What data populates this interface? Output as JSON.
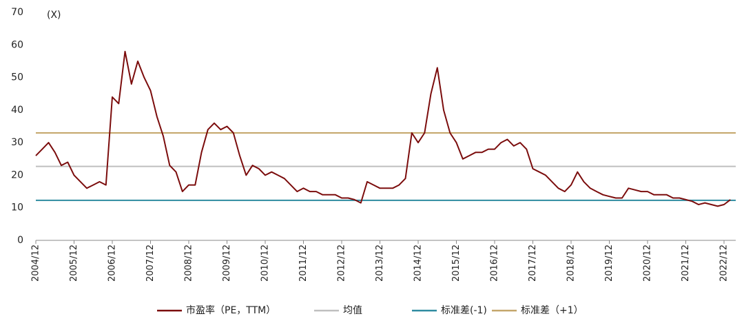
{
  "chart_data": {
    "type": "line",
    "y_unit": "(X)",
    "categories": [
      "2004/12",
      null,
      null,
      null,
      null,
      null,
      "2005/12",
      null,
      null,
      null,
      null,
      null,
      "2006/12",
      null,
      null,
      null,
      null,
      null,
      "2007/12",
      null,
      null,
      null,
      null,
      null,
      "2008/12",
      null,
      null,
      null,
      null,
      null,
      "2009/12",
      null,
      null,
      null,
      null,
      null,
      "2010/12",
      null,
      null,
      null,
      null,
      null,
      "2011/12",
      null,
      null,
      null,
      null,
      null,
      "2012/12",
      null,
      null,
      null,
      null,
      null,
      "2013/12",
      null,
      null,
      null,
      null,
      null,
      "2014/12",
      null,
      null,
      null,
      null,
      null,
      "2015/12",
      null,
      null,
      null,
      null,
      null,
      "2016/12",
      null,
      null,
      null,
      null,
      null,
      "2017/12",
      null,
      null,
      null,
      null,
      null,
      "2018/12",
      null,
      null,
      null,
      null,
      null,
      "2019/12",
      null,
      null,
      null,
      null,
      null,
      "2020/12",
      null,
      null,
      null,
      null,
      null,
      "2021/12",
      null,
      null,
      null,
      null,
      null,
      "2022/12",
      null
    ],
    "series": [
      {
        "name": "市盈率（PE，TTM）",
        "color": "#7b0c0c",
        "values": [
          26,
          28,
          30,
          27,
          23,
          24,
          20,
          18,
          16,
          17,
          18,
          17,
          44,
          42,
          58,
          48,
          55,
          50,
          46,
          38,
          32,
          23,
          21,
          15,
          17,
          17,
          27,
          34,
          36,
          34,
          35,
          33,
          26,
          20,
          23,
          22,
          20,
          21,
          20,
          19,
          17,
          15,
          16,
          15,
          15,
          14,
          14,
          14,
          13,
          13,
          12.5,
          11.5,
          18,
          17,
          16,
          16,
          16,
          17,
          19,
          33,
          30,
          33,
          45,
          53,
          40,
          33,
          30,
          25,
          26,
          27,
          27,
          28,
          28,
          30,
          31,
          29,
          30,
          28,
          22,
          21,
          20,
          18,
          16,
          15,
          17,
          21,
          18,
          16,
          15,
          14,
          13.5,
          13,
          13,
          16,
          15.5,
          15,
          15,
          14,
          14,
          14,
          13,
          13,
          12.5,
          12,
          11,
          11.5,
          11,
          10.5,
          11,
          12.5
        ]
      }
    ],
    "reference_lines": [
      {
        "name": "均值",
        "value": 22.7,
        "color": "#bfbfbf"
      },
      {
        "name": "标准差(-1)",
        "value": 12.3,
        "color": "#2e8ba0"
      },
      {
        "name": "标准差（+1）",
        "value": 33,
        "color": "#c4a66a"
      }
    ],
    "ylim": [
      0,
      70
    ],
    "yticks": [
      0,
      10,
      20,
      30,
      40,
      50,
      60,
      70
    ],
    "grid": false
  }
}
